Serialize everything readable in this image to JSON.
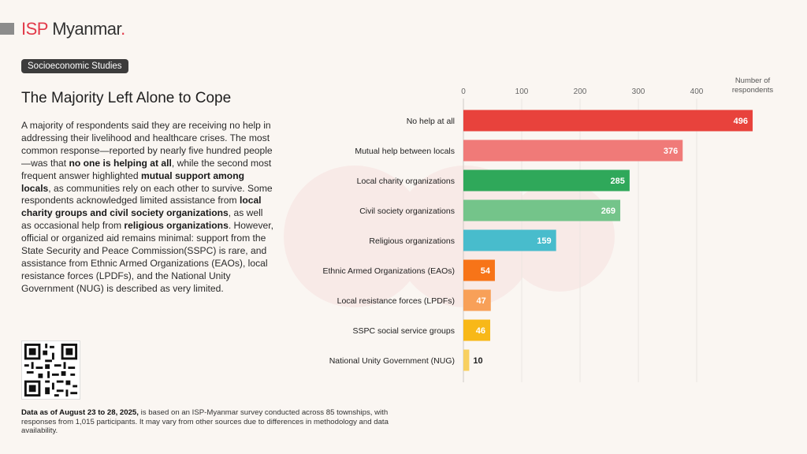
{
  "brand": {
    "isp": "ISP",
    "name": "Myanmar",
    "dot": "."
  },
  "tag": "Socioeconomic Studies",
  "title": "The Majority Left Alone to Cope",
  "body": {
    "p1": "A majority of respondents said they are receiving no help in addressing their livelihood and healthcare crises. The most common response—reported by nearly five hundred people—was that ",
    "b1": "no one is helping at all",
    "p2": ", while the second most frequent answer highlighted ",
    "b2": "mutual support among locals",
    "p3": ", as communities rely on each other to survive. Some respondents acknowledged limited assistance from ",
    "b3": "local charity groups and civil society organizations",
    "p4": ", as well as occasional help from ",
    "b4": "religious organizations",
    "p5": ". However, official or organized aid remains minimal: support from the State Security and Peace Commission(SSPC) is rare, and assistance from Ethnic Armed Organizations (EAOs), local resistance forces (LPDFs), and the National Unity Government (NUG) is described as very limited."
  },
  "footer": {
    "bold": "Data as of August 23 to 28, 2025,",
    "text": " is based on an ISP-Myanmar survey conducted across 85 townships, with responses from 1,015 participants. It may vary from other sources due to differences in methodology and data availability."
  },
  "axis_title": {
    "line1": "Number of",
    "line2": "respondents"
  },
  "chart_data": {
    "type": "bar",
    "orientation": "horizontal",
    "categories": [
      "No help at all",
      "Mutual help between locals",
      "Local charity organizations",
      "Civil society organizations",
      "Religious organizations",
      "Ethnic Armed Organizations (EAOs)",
      "Local resistance forces (LPDFs)",
      "SSPC social service groups",
      "National Unity Government (NUG)"
    ],
    "values": [
      496,
      376,
      285,
      269,
      159,
      54,
      47,
      46,
      10
    ],
    "colors": [
      "#e8423c",
      "#f07a78",
      "#2fa85a",
      "#74c48a",
      "#48bccc",
      "#f77418",
      "#f8a058",
      "#f8b818",
      "#f8d060"
    ],
    "xticks": [
      0,
      100,
      200,
      300,
      400
    ],
    "xlim": [
      0,
      540
    ],
    "xlabel": "Number of respondents"
  }
}
